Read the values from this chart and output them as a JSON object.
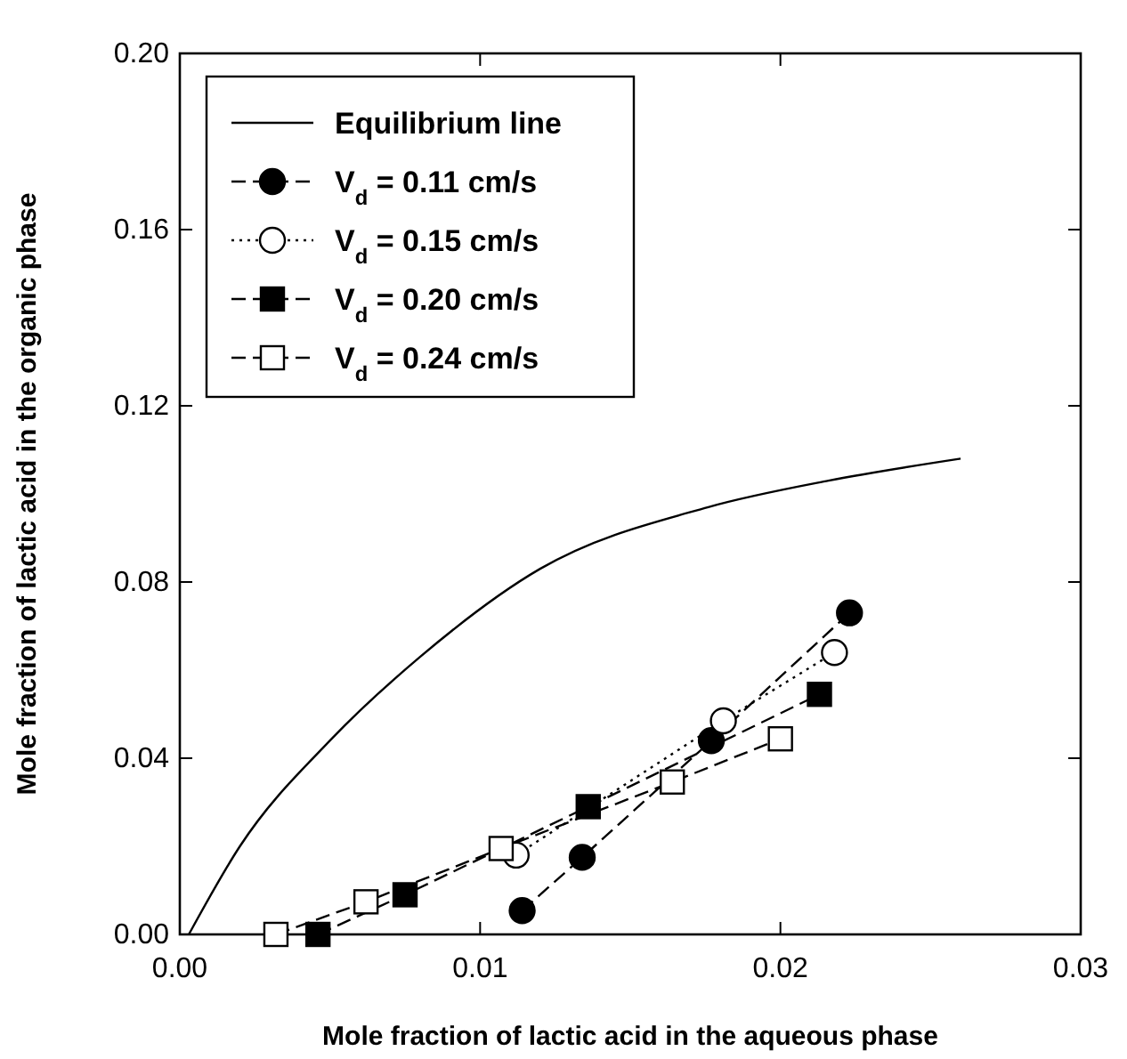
{
  "chart_data": {
    "type": "line",
    "xlabel": "Mole fraction of lactic acid in the aqueous phase",
    "ylabel": "Mole fraction of lactic acid in the organic phase",
    "xlim": [
      0,
      0.03
    ],
    "xticks": [
      {
        "value": 0,
        "label": "0.00"
      },
      0.01,
      0.02,
      0.03
    ],
    "ylim": [
      0,
      0.2
    ],
    "yticks": [
      {
        "value": 0,
        "label": "0.00"
      },
      0.04,
      0.08,
      0.12,
      0.16,
      {
        "value": 0.2,
        "label": "0.20"
      }
    ],
    "grid": false,
    "legend": "top left",
    "series": [
      {
        "name": "Equilibrium line",
        "color": "#000000",
        "marker": "none",
        "line_style": "solid",
        "x": [
          0.0003,
          0.002,
          0.005,
          0.008,
          0.012,
          0.0176,
          0.0216,
          0.026
        ],
        "values": [
          0,
          0.02,
          0.044,
          0.063,
          0.083,
          0.097,
          0.103,
          0.108
        ]
      },
      {
        "name": "V$_{d}$ = 0.11 cm/s",
        "color": "#000000",
        "marker": "circle",
        "line_style": "dashed",
        "x": [
          0.0114,
          0.0134,
          0.0177,
          0.0223
        ],
        "values": [
          0.0054,
          0.0175,
          0.044,
          0.073
        ]
      },
      {
        "name": "V$_{d}$ = 0.15 cm/s",
        "color": "#000000",
        "marker": "circle",
        "line_style": "dotted",
        "x": [
          0.0112,
          0.0181,
          0.0218
        ],
        "values": [
          0.018,
          0.0485,
          0.064
        ]
      },
      {
        "name": "V$_{d}$ = 0.20 cm/s",
        "color": "#000000",
        "marker": "square",
        "line_style": "dashed",
        "x": [
          0.0046,
          0.0075,
          0.0136,
          0.0213
        ],
        "values": [
          0,
          0.009,
          0.029,
          0.0545
        ]
      },
      {
        "name": "V$_{d}$ = 0.24 cm/s",
        "color": "#000000",
        "marker": "square",
        "line_style": "dashed",
        "x": [
          0.0032,
          0.0062,
          0.0107,
          0.0164,
          0.02
        ],
        "values": [
          0,
          0.0074,
          0.0195,
          0.0346,
          0.0444
        ]
      }
    ]
  }
}
